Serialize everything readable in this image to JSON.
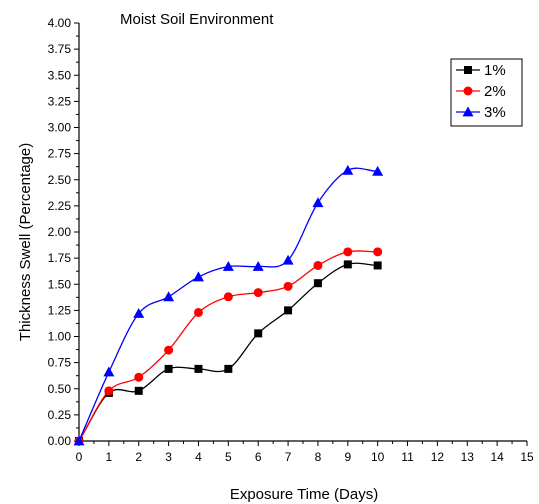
{
  "chart_data": {
    "type": "line",
    "title": "Moist Soil Environment",
    "xlabel": "Exposure Time (Days)",
    "ylabel": "Thickness Swell (Percentage)",
    "xlim": [
      0,
      15
    ],
    "ylim": [
      0,
      4.0
    ],
    "x_ticks": [
      "0",
      "1",
      "2",
      "3",
      "4",
      "5",
      "6",
      "7",
      "8",
      "9",
      "10",
      "11",
      "12",
      "13",
      "14",
      "15"
    ],
    "y_ticks": [
      "0.00",
      "0.25",
      "0.50",
      "0.75",
      "1.00",
      "1.25",
      "1.50",
      "1.75",
      "2.00",
      "2.25",
      "2.50",
      "2.75",
      "3.00",
      "3.25",
      "3.50",
      "3.75",
      "4.00"
    ],
    "grid": false,
    "legend_position": "top-right",
    "x": [
      0,
      1,
      2,
      3,
      4,
      5,
      6,
      7,
      8,
      9,
      10
    ],
    "series": [
      {
        "name": "1%",
        "color": "#000000",
        "marker": "square",
        "values": [
          0.0,
          0.46,
          0.48,
          0.69,
          0.69,
          0.69,
          1.03,
          1.25,
          1.51,
          1.69,
          1.68
        ]
      },
      {
        "name": "2%",
        "color": "#ff0000",
        "marker": "circle",
        "values": [
          0.0,
          0.48,
          0.61,
          0.87,
          1.23,
          1.38,
          1.42,
          1.48,
          1.68,
          1.81,
          1.81
        ]
      },
      {
        "name": "3%",
        "color": "#0000ff",
        "marker": "triangle",
        "values": [
          0.0,
          0.66,
          1.22,
          1.38,
          1.57,
          1.67,
          1.67,
          1.73,
          2.28,
          2.59,
          2.58
        ]
      }
    ]
  }
}
